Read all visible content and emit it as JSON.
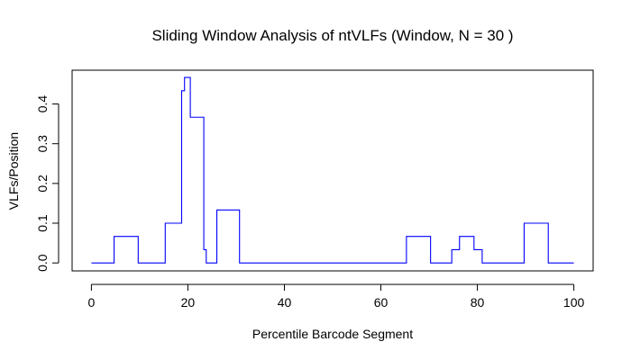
{
  "chart_data": {
    "type": "line",
    "title": "Sliding Window Analysis of ntVLFs (Window, N = 30 )",
    "xlabel": "Percentile Barcode Segment",
    "ylabel": "VLFs/Position",
    "xlim": [
      -4,
      104
    ],
    "ylim": [
      -0.02,
      0.485
    ],
    "xticks": [
      0,
      20,
      40,
      60,
      80,
      100
    ],
    "yticks": [
      0.0,
      0.1,
      0.2,
      0.3,
      0.4
    ],
    "ytick_labels": [
      "0.0",
      "0.1",
      "0.2",
      "0.3",
      "0.4"
    ],
    "grid": false,
    "legend": "none",
    "series": [
      {
        "color": "#0000ff",
        "x": [
          0,
          4.7,
          4.7,
          9.7,
          9.7,
          15.3,
          15.3,
          18.7,
          18.7,
          18.9,
          18.9,
          19.3,
          19.3,
          20.5,
          20.5,
          23.3,
          23.3,
          23.5,
          23.5,
          23.8,
          23.8,
          25.3,
          25.3,
          26.0,
          26.0,
          30.7,
          30.7,
          65.3,
          65.3,
          70.3,
          70.3,
          74.7,
          74.7,
          76.3,
          76.3,
          79.3,
          79.3,
          81.0,
          81.0,
          89.7,
          89.7,
          94.7,
          94.7,
          100
        ],
        "y": [
          0,
          0,
          0.0667,
          0.0667,
          0,
          0,
          0.1,
          0.1,
          0.4333,
          0.4333,
          0.4333,
          0.4333,
          0.4667,
          0.4667,
          0.3667,
          0.3667,
          0.0333,
          0.0333,
          0.0333,
          0.0333,
          0,
          0,
          0,
          0,
          0.1333,
          0.1333,
          0,
          0,
          0.0667,
          0.0667,
          0,
          0,
          0.0333,
          0.0333,
          0.0667,
          0.0667,
          0.0333,
          0.0333,
          0,
          0,
          0.1,
          0.1,
          0,
          0
        ]
      }
    ]
  }
}
